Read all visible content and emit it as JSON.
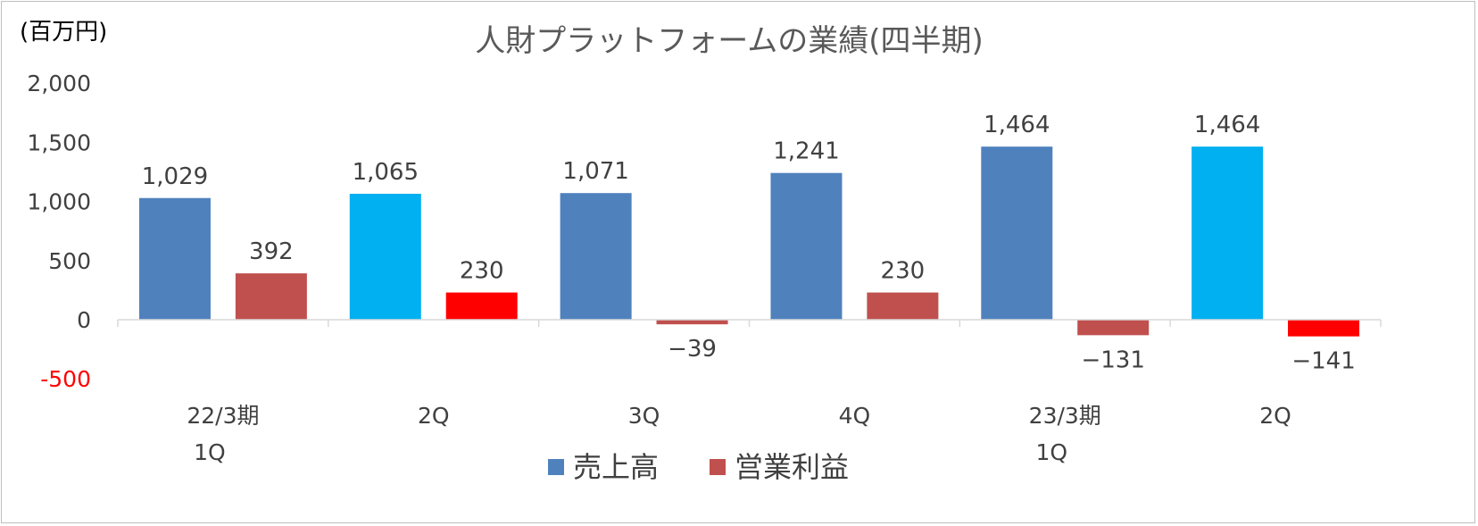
{
  "chart_data": {
    "type": "bar",
    "title": "人財プラットフォームの業績(四半期)",
    "unit_label": "(百万円)",
    "categories": [
      {
        "line1": "22/3期",
        "line2": "1Q"
      },
      {
        "line1": "2Q",
        "line2": ""
      },
      {
        "line1": "3Q",
        "line2": ""
      },
      {
        "line1": "4Q",
        "line2": ""
      },
      {
        "line1": "23/3期",
        "line2": "1Q"
      },
      {
        "line1": "2Q",
        "line2": ""
      }
    ],
    "series": [
      {
        "name": "売上高",
        "values": [
          1029,
          1065,
          1071,
          1241,
          1464,
          1464
        ],
        "labels": [
          "1,029",
          "1,065",
          "1,071",
          "1,241",
          "1,464",
          "1,464"
        ],
        "color": "#4f81bd",
        "highlight_color": "#00b0f0",
        "highlight_indices": [
          1,
          5
        ]
      },
      {
        "name": "営業利益",
        "values": [
          392,
          230,
          -39,
          230,
          -131,
          -141
        ],
        "labels": [
          "392",
          "230",
          "−39",
          "230",
          "−131",
          "−141"
        ],
        "color": "#c0504d",
        "highlight_color": "#ff0000",
        "highlight_indices": [
          1,
          5
        ]
      }
    ],
    "ylim": [
      -500,
      2000
    ],
    "yticks": [
      {
        "value": 2000,
        "label": "2,000"
      },
      {
        "value": 1500,
        "label": "1,500"
      },
      {
        "value": 1000,
        "label": "1,000"
      },
      {
        "value": 500,
        "label": "500"
      },
      {
        "value": 0,
        "label": "0"
      },
      {
        "value": -500,
        "label": "-500",
        "color": "#ff0000"
      }
    ],
    "grid": false,
    "legend": "bottom-center"
  }
}
